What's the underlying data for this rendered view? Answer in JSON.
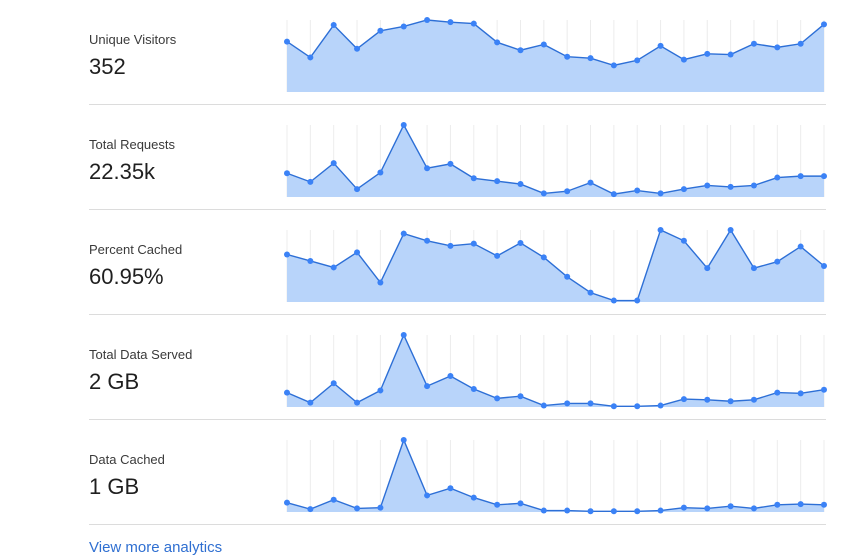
{
  "link_label": "View more analytics",
  "colors": {
    "line": "#2d6fd6",
    "dot": "#3b82f6",
    "fill": "#b8d4fa",
    "grid": "#ececec"
  },
  "chart_data": [
    {
      "type": "area",
      "label": "Unique Visitors",
      "value": "352",
      "values": [
        70,
        48,
        93,
        60,
        85,
        91,
        100,
        97,
        95,
        69,
        58,
        66,
        49,
        47,
        37,
        44,
        64,
        45,
        53,
        52,
        67,
        62,
        67,
        94
      ]
    },
    {
      "type": "area",
      "label": "Total Requests",
      "value": "22.35k",
      "values": [
        33,
        21,
        47,
        11,
        34,
        100,
        40,
        46,
        26,
        22,
        18,
        5,
        8,
        20,
        4,
        9,
        5,
        11,
        16,
        14,
        16,
        27,
        29,
        29
      ]
    },
    {
      "type": "area",
      "label": "Percent Cached",
      "value": "60.95%",
      "values": [
        66,
        57,
        48,
        69,
        27,
        95,
        85,
        78,
        81,
        64,
        82,
        62,
        35,
        13,
        2,
        2,
        100,
        85,
        47,
        100,
        47,
        56,
        77,
        50
      ]
    },
    {
      "type": "area",
      "label": "Total Data Served",
      "value": "2 GB",
      "values": [
        20,
        6,
        33,
        6,
        23,
        100,
        29,
        43,
        25,
        12,
        15,
        2,
        5,
        5,
        1,
        1,
        2,
        11,
        10,
        8,
        10,
        20,
        19,
        24
      ]
    },
    {
      "type": "area",
      "label": "Data Cached",
      "value": "1 GB",
      "values": [
        13,
        4,
        17,
        5,
        6,
        100,
        23,
        33,
        20,
        10,
        12,
        2,
        2,
        1,
        1,
        1,
        2,
        6,
        5,
        8,
        5,
        10,
        11,
        10
      ]
    }
  ]
}
